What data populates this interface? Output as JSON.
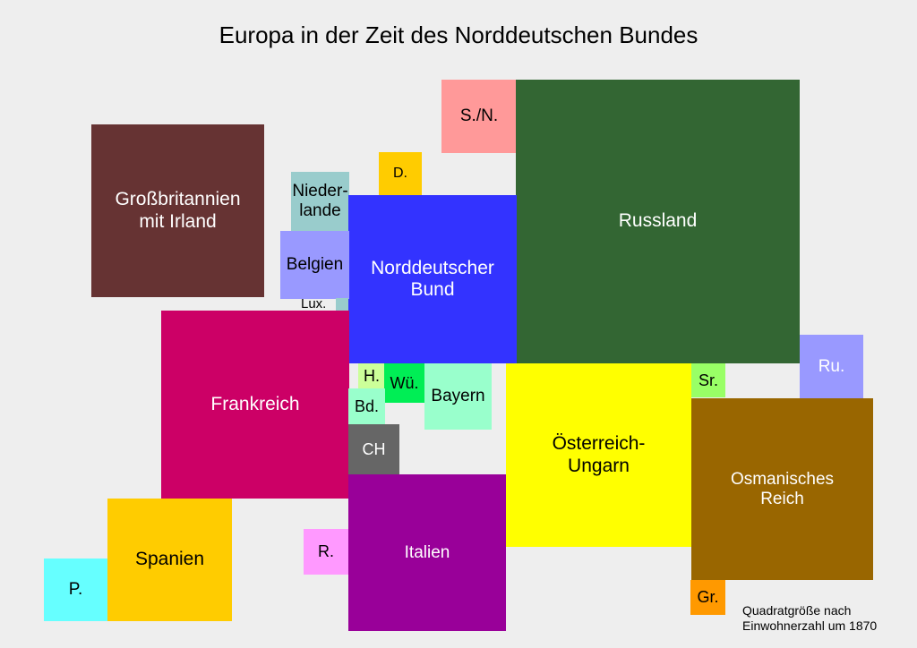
{
  "title": "Europa in der Zeit des Norddeutschen Bundes",
  "note": "Quadratgröße nach\nEinwohnerzahl um 1870",
  "regions": {
    "sn": {
      "label": "S./N.",
      "color": "#ff9999"
    },
    "russland": {
      "label": "Russland",
      "color": "#336633"
    },
    "gb": {
      "label": "Großbritannien\nmit Irland",
      "color": "#663333"
    },
    "nl": {
      "label": "Nieder-\nlande",
      "color": "#99cccc"
    },
    "dk": {
      "label": "D.",
      "color": "#ffcc00"
    },
    "ndb": {
      "label": "Norddeutscher\nBund",
      "color": "#3333ff"
    },
    "belgien": {
      "label": "Belgien",
      "color": "#9999ff"
    },
    "lux": {
      "label": "Lux.",
      "color": "#99cccc"
    },
    "frankreich": {
      "label": "Frankreich",
      "color": "#cc0066"
    },
    "hessen": {
      "label": "H.",
      "color": "#ccff99"
    },
    "wue": {
      "label": "Wü.",
      "color": "#00ee55"
    },
    "bayern": {
      "label": "Bayern",
      "color": "#99ffcc"
    },
    "baden": {
      "label": "Bd.",
      "color": "#99ffcc"
    },
    "ch": {
      "label": "CH",
      "color": "#666666"
    },
    "oeu": {
      "label": "Österreich-\nUngarn",
      "color": "#ffff00"
    },
    "serbien": {
      "label": "Sr.",
      "color": "#99ff66"
    },
    "rumaenien": {
      "label": "Ru.",
      "color": "#9999ff"
    },
    "osman": {
      "label": "Osmanisches\nReich",
      "color": "#996600"
    },
    "griechenland": {
      "label": "Gr.",
      "color": "#ff9900"
    },
    "italien": {
      "label": "Italien",
      "color": "#990099"
    },
    "rom": {
      "label": "R.",
      "color": "#ff99ff"
    },
    "spanien": {
      "label": "Spanien",
      "color": "#ffcc00"
    },
    "portugal": {
      "label": "P.",
      "color": "#66ffff"
    }
  }
}
